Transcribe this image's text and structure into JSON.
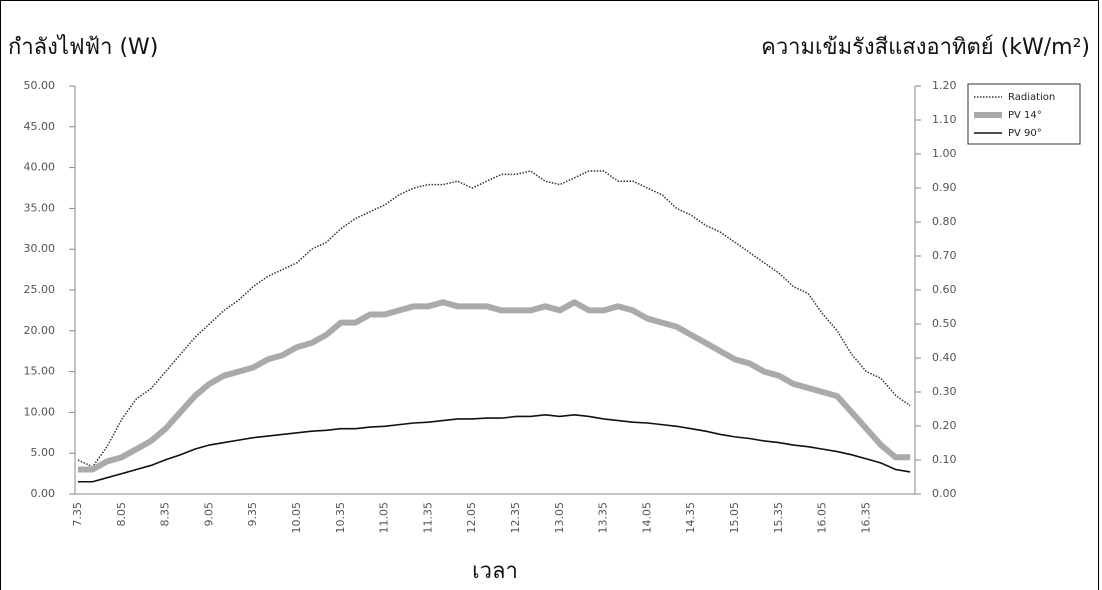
{
  "chart_data": {
    "type": "line",
    "y_label": "กำลังไฟฟ้า (W)",
    "y2_label": "ความเข้มรังสีแสงอาทิตย์ (kW/m²)",
    "x_label": "เวลา",
    "categories": [
      "7.35",
      null,
      null,
      "8.05",
      null,
      null,
      "8.35",
      null,
      null,
      "9.05",
      null,
      null,
      "9.35",
      null,
      null,
      "10.05",
      null,
      null,
      "10.35",
      null,
      null,
      "11.05",
      null,
      null,
      "11.35",
      null,
      null,
      "12.05",
      null,
      null,
      "12.35",
      null,
      null,
      "13.05",
      null,
      null,
      "13.35",
      null,
      null,
      "14.05",
      null,
      null,
      "14.35",
      null,
      null,
      "15.05",
      null,
      null,
      "15.35",
      null,
      null,
      "16.05",
      null,
      null,
      "16.35",
      null,
      null,
      null
    ],
    "series": [
      {
        "name": "Radiation",
        "color": "#333333",
        "axis": "y2",
        "style": "dotted",
        "values": [
          0.1,
          0.08,
          0.14,
          0.22,
          0.28,
          0.31,
          0.36,
          0.41,
          0.46,
          0.5,
          0.54,
          0.57,
          0.61,
          0.64,
          0.66,
          0.68,
          0.72,
          0.74,
          0.78,
          0.81,
          0.83,
          0.85,
          0.88,
          0.9,
          0.91,
          0.91,
          0.92,
          0.9,
          0.92,
          0.94,
          0.94,
          0.95,
          0.92,
          0.91,
          0.93,
          0.95,
          0.95,
          0.92,
          0.92,
          0.9,
          0.88,
          0.84,
          0.82,
          0.79,
          0.77,
          0.74,
          0.71,
          0.68,
          0.65,
          0.61,
          0.59,
          0.53,
          0.48,
          0.41,
          0.36,
          0.34,
          0.29,
          0.26
        ]
      },
      {
        "name": "PV 14°",
        "color": "#aaaaaa",
        "axis": "y",
        "style": "thick",
        "values": [
          3,
          3,
          4,
          4.5,
          5.5,
          6.5,
          8,
          10,
          12,
          13.5,
          14.5,
          15,
          15.5,
          16.5,
          17,
          18,
          18.5,
          19.5,
          21,
          21,
          22,
          22,
          22.5,
          23,
          23,
          23.5,
          23,
          23,
          23,
          22.5,
          22.5,
          22.5,
          23,
          22.5,
          23.5,
          22.5,
          22.5,
          23,
          22.5,
          21.5,
          21,
          20.5,
          19.5,
          18.5,
          17.5,
          16.5,
          16,
          15,
          14.5,
          13.5,
          13,
          12.5,
          12,
          10,
          8,
          6,
          4.5,
          4.5
        ]
      },
      {
        "name": "PV 90°",
        "color": "#111111",
        "axis": "y",
        "style": "solid",
        "values": [
          1.5,
          1.5,
          2,
          2.5,
          3,
          3.5,
          4.2,
          4.8,
          5.5,
          6,
          6.3,
          6.6,
          6.9,
          7.1,
          7.3,
          7.5,
          7.7,
          7.8,
          8,
          8,
          8.2,
          8.3,
          8.5,
          8.7,
          8.8,
          9,
          9.2,
          9.2,
          9.3,
          9.3,
          9.5,
          9.5,
          9.7,
          9.5,
          9.7,
          9.5,
          9.2,
          9,
          8.8,
          8.7,
          8.5,
          8.3,
          8,
          7.7,
          7.3,
          7,
          6.8,
          6.5,
          6.3,
          6,
          5.8,
          5.5,
          5.2,
          4.8,
          4.3,
          3.8,
          3,
          2.7
        ]
      }
    ],
    "ylim": [
      0,
      50
    ],
    "yticks": [
      {
        "value": 0,
        "label": "0.00"
      },
      {
        "value": 5,
        "label": "5.00"
      },
      {
        "value": 10,
        "label": "10.00"
      },
      {
        "value": 15,
        "label": "15.00"
      },
      {
        "value": 20,
        "label": "20.00"
      },
      {
        "value": 25,
        "label": "25.00"
      },
      {
        "value": 30,
        "label": "30.00"
      },
      {
        "value": 35,
        "label": "35.00"
      },
      {
        "value": 40,
        "label": "40.00"
      },
      {
        "value": 45,
        "label": "45.00"
      },
      {
        "value": 50,
        "label": "50.00"
      }
    ],
    "y2lim": [
      0,
      1.2
    ],
    "y2ticks": [
      {
        "value": 0,
        "label": "0.00"
      },
      {
        "value": 0.1,
        "label": "0.10"
      },
      {
        "value": 0.2,
        "label": "0.20"
      },
      {
        "value": 0.3,
        "label": "0.30"
      },
      {
        "value": 0.4,
        "label": "0.40"
      },
      {
        "value": 0.5,
        "label": "0.50"
      },
      {
        "value": 0.6,
        "label": "0.60"
      },
      {
        "value": 0.7,
        "label": "0.70"
      },
      {
        "value": 0.8,
        "label": "0.80"
      },
      {
        "value": 0.9,
        "label": "0.90"
      },
      {
        "value": 1.0,
        "label": "1.00"
      },
      {
        "value": 1.1,
        "label": "1.10"
      },
      {
        "value": 1.2,
        "label": "1.20"
      }
    ],
    "legend": "right",
    "grid": false
  }
}
